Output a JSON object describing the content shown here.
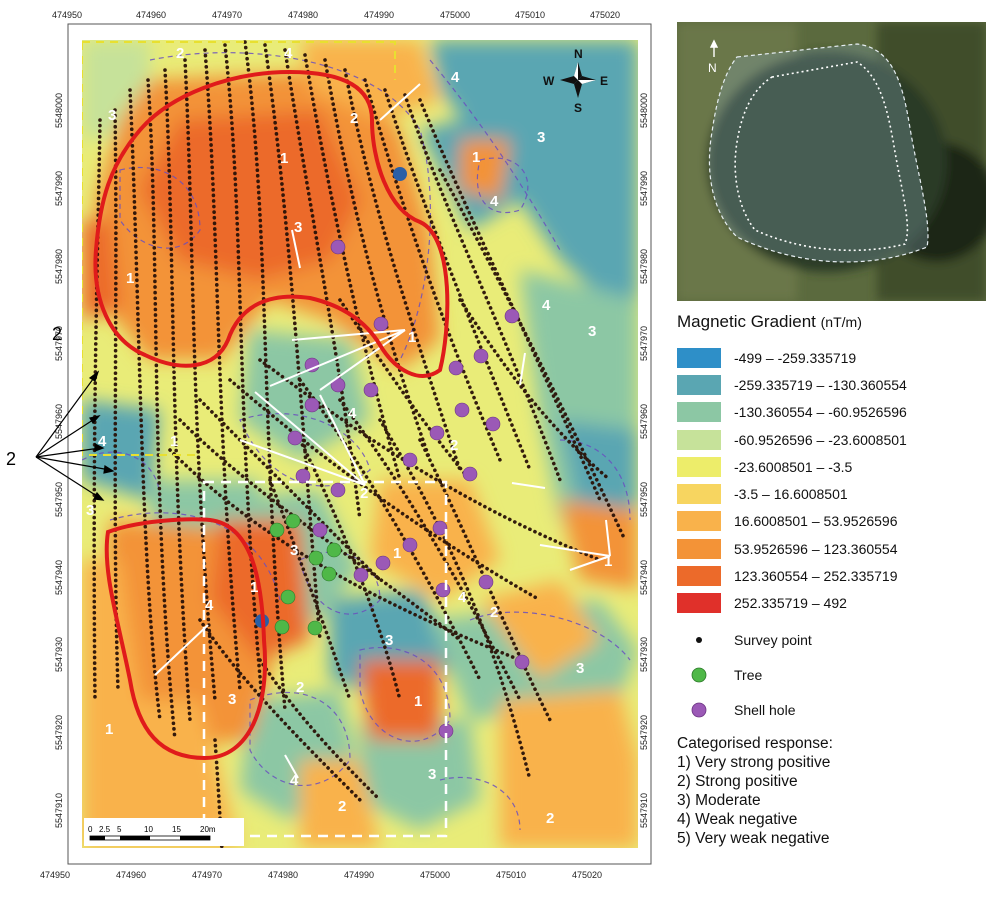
{
  "map": {
    "x_ticks": [
      "474950",
      "474960",
      "474970",
      "474980",
      "474990",
      "475000",
      "475010",
      "475020"
    ],
    "y_ticks": [
      "5548000",
      "5547990",
      "5547980",
      "5547970",
      "5547960",
      "5547950",
      "5547940",
      "5547930",
      "5547920",
      "5547910"
    ],
    "zone_labels": [
      "1",
      "2",
      "3",
      "4"
    ],
    "side_label": "2",
    "compass": {
      "n": "N",
      "s": "S",
      "e": "E",
      "w": "W"
    },
    "scale_labels": [
      "0",
      "2.5",
      "5",
      "10",
      "15",
      "20m"
    ]
  },
  "aerial": {
    "north_label": "N"
  },
  "legend": {
    "title": "Magnetic Gradient",
    "unit": "(nT/m)",
    "classes": [
      {
        "label": "-499 – -259.335719",
        "color": "#2e8fc8"
      },
      {
        "label": "-259.335719 – -130.360554",
        "color": "#5aa6b2"
      },
      {
        "label": "-130.360554 – -60.9526596",
        "color": "#8cc7a4"
      },
      {
        "label": "-60.9526596 – -23.6008501",
        "color": "#c6e29a"
      },
      {
        "label": "-23.6008501 – -3.5",
        "color": "#eded6a"
      },
      {
        "label": "-3.5 – 16.6008501",
        "color": "#f7d560"
      },
      {
        "label": "16.6008501 – 53.9526596",
        "color": "#f9b24b"
      },
      {
        "label": "53.9526596 – 123.360554",
        "color": "#f39337"
      },
      {
        "label": "123.360554 – 252.335719",
        "color": "#ec6a2a"
      },
      {
        "label": "252.335719 – 492",
        "color": "#e0302a"
      }
    ],
    "symbols": [
      {
        "label": "Survey point",
        "color": "#111111"
      },
      {
        "label": "Tree",
        "color": "#4fb848"
      },
      {
        "label": "Shell hole",
        "color": "#9b59b6"
      }
    ],
    "categories_title": "Categorised response:",
    "categories": [
      "1) Very strong positive",
      "2) Strong positive",
      "3) Moderate",
      "4) Weak negative",
      "5) Very weak negative"
    ]
  }
}
